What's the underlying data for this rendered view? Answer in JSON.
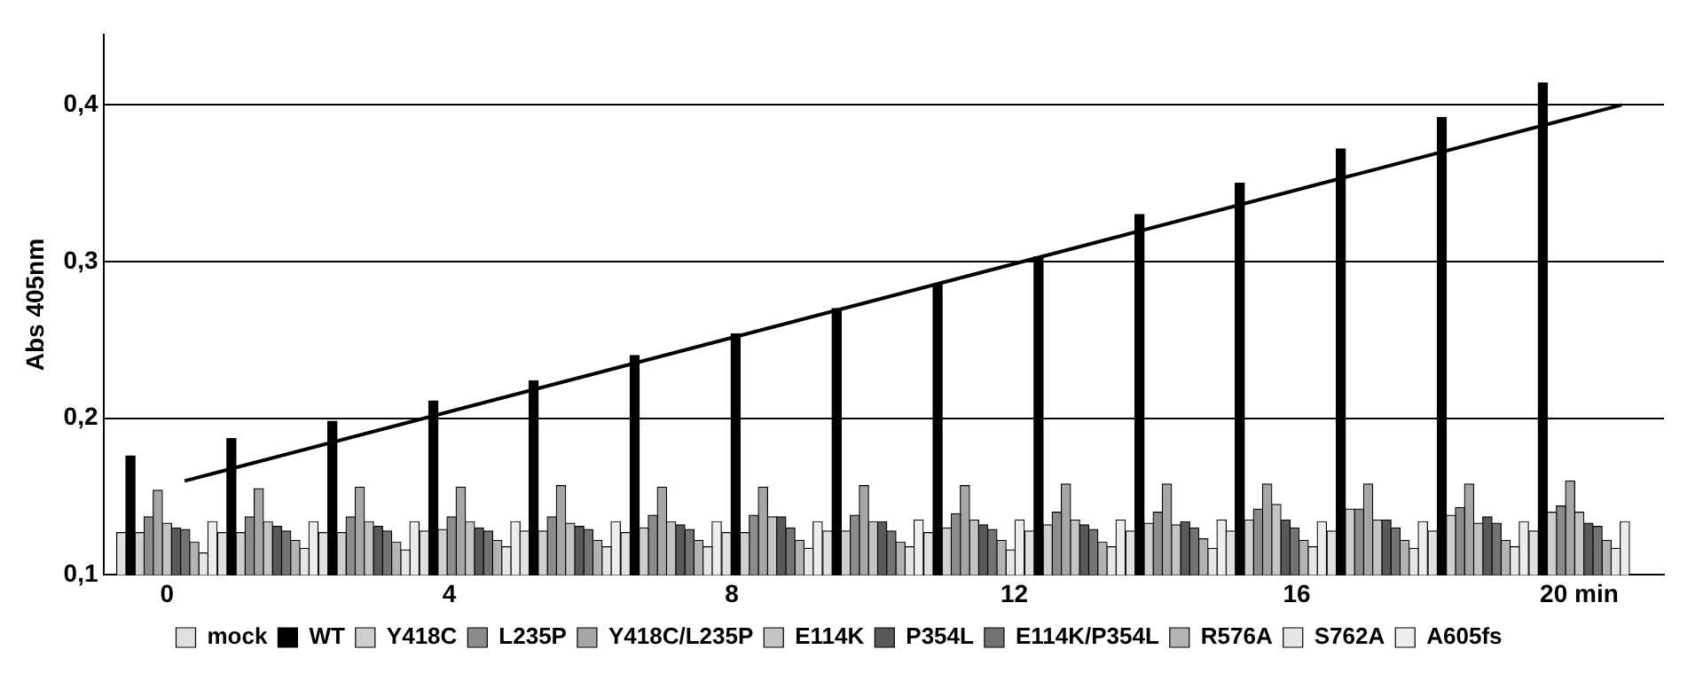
{
  "chart_data": {
    "type": "bar",
    "ylabel": "Abs 405nm",
    "x": [
      0,
      1.43,
      2.86,
      4.29,
      5.71,
      7.14,
      8.57,
      10,
      11.43,
      12.86,
      14.29,
      15.71,
      17.14,
      18.57,
      20
    ],
    "xlim": [
      -0.9,
      21.2
    ],
    "xticks": [
      0,
      4,
      8,
      12,
      16,
      {
        "value": 20,
        "label": "20 min"
      }
    ],
    "ylim": [
      0.1,
      0.445
    ],
    "yticks": [
      {
        "value": 0.1,
        "label": "0,1"
      },
      {
        "value": 0.2,
        "label": "0,2"
      },
      {
        "value": 0.3,
        "label": "0,3"
      },
      {
        "value": 0.4,
        "label": "0,4"
      }
    ],
    "grid": "y",
    "legend": "bottom",
    "series": [
      {
        "name": "mock",
        "color": "#e0e0e0",
        "values": [
          0.127,
          0.127,
          0.127,
          0.128,
          0.128,
          0.127,
          0.127,
          0.128,
          0.127,
          0.128,
          0.128,
          0.128,
          0.128,
          0.128,
          0.128
        ]
      },
      {
        "name": "WT",
        "color": "#000000",
        "values": [
          0.176,
          0.187,
          0.198,
          0.211,
          0.224,
          0.24,
          0.254,
          0.27,
          0.285,
          0.303,
          0.33,
          0.35,
          0.372,
          0.392,
          0.414
        ]
      },
      {
        "name": "Y418C",
        "color": "#cfcfcf",
        "values": [
          0.127,
          0.127,
          0.127,
          0.129,
          0.128,
          0.13,
          0.127,
          0.128,
          0.13,
          0.132,
          0.133,
          0.135,
          0.142,
          0.138,
          0.14
        ]
      },
      {
        "name": "L235P",
        "color": "#8c8c8c",
        "values": [
          0.137,
          0.137,
          0.137,
          0.137,
          0.137,
          0.138,
          0.138,
          0.138,
          0.139,
          0.14,
          0.14,
          0.142,
          0.142,
          0.143,
          0.144
        ]
      },
      {
        "name": "Y418C/L235P",
        "color": "#a6a6a6",
        "values": [
          0.154,
          0.155,
          0.156,
          0.156,
          0.157,
          0.156,
          0.156,
          0.157,
          0.157,
          0.158,
          0.158,
          0.158,
          0.158,
          0.158,
          0.16
        ]
      },
      {
        "name": "E114K",
        "color": "#c4c4c4",
        "values": [
          0.133,
          0.134,
          0.134,
          0.134,
          0.133,
          0.134,
          0.137,
          0.134,
          0.135,
          0.135,
          0.132,
          0.145,
          0.135,
          0.133,
          0.14
        ]
      },
      {
        "name": "P354L",
        "color": "#595959",
        "values": [
          0.13,
          0.131,
          0.131,
          0.13,
          0.131,
          0.132,
          0.137,
          0.134,
          0.132,
          0.132,
          0.134,
          0.135,
          0.135,
          0.137,
          0.133
        ]
      },
      {
        "name": "E114K/P354L",
        "color": "#737373",
        "values": [
          0.129,
          0.128,
          0.128,
          0.128,
          0.129,
          0.129,
          0.13,
          0.128,
          0.129,
          0.129,
          0.13,
          0.13,
          0.13,
          0.133,
          0.131
        ]
      },
      {
        "name": "R576A",
        "color": "#b3b3b3",
        "values": [
          0.121,
          0.122,
          0.121,
          0.122,
          0.122,
          0.122,
          0.122,
          0.121,
          0.122,
          0.121,
          0.123,
          0.122,
          0.122,
          0.122,
          0.122
        ]
      },
      {
        "name": "S762A",
        "color": "#e6e6e6",
        "values": [
          0.114,
          0.117,
          0.116,
          0.118,
          0.118,
          0.118,
          0.117,
          0.118,
          0.116,
          0.118,
          0.117,
          0.118,
          0.117,
          0.118,
          0.117
        ]
      },
      {
        "name": "A605fs",
        "color": "#ededed",
        "values": [
          0.134,
          0.134,
          0.134,
          0.134,
          0.134,
          0.134,
          0.134,
          0.135,
          0.135,
          0.135,
          0.135,
          0.134,
          0.134,
          0.134,
          0.134
        ]
      },
      {
        "type": "line",
        "color": "#000000",
        "x": [
          0.25,
          20.6
        ],
        "values": [
          0.16,
          0.4
        ]
      }
    ]
  }
}
